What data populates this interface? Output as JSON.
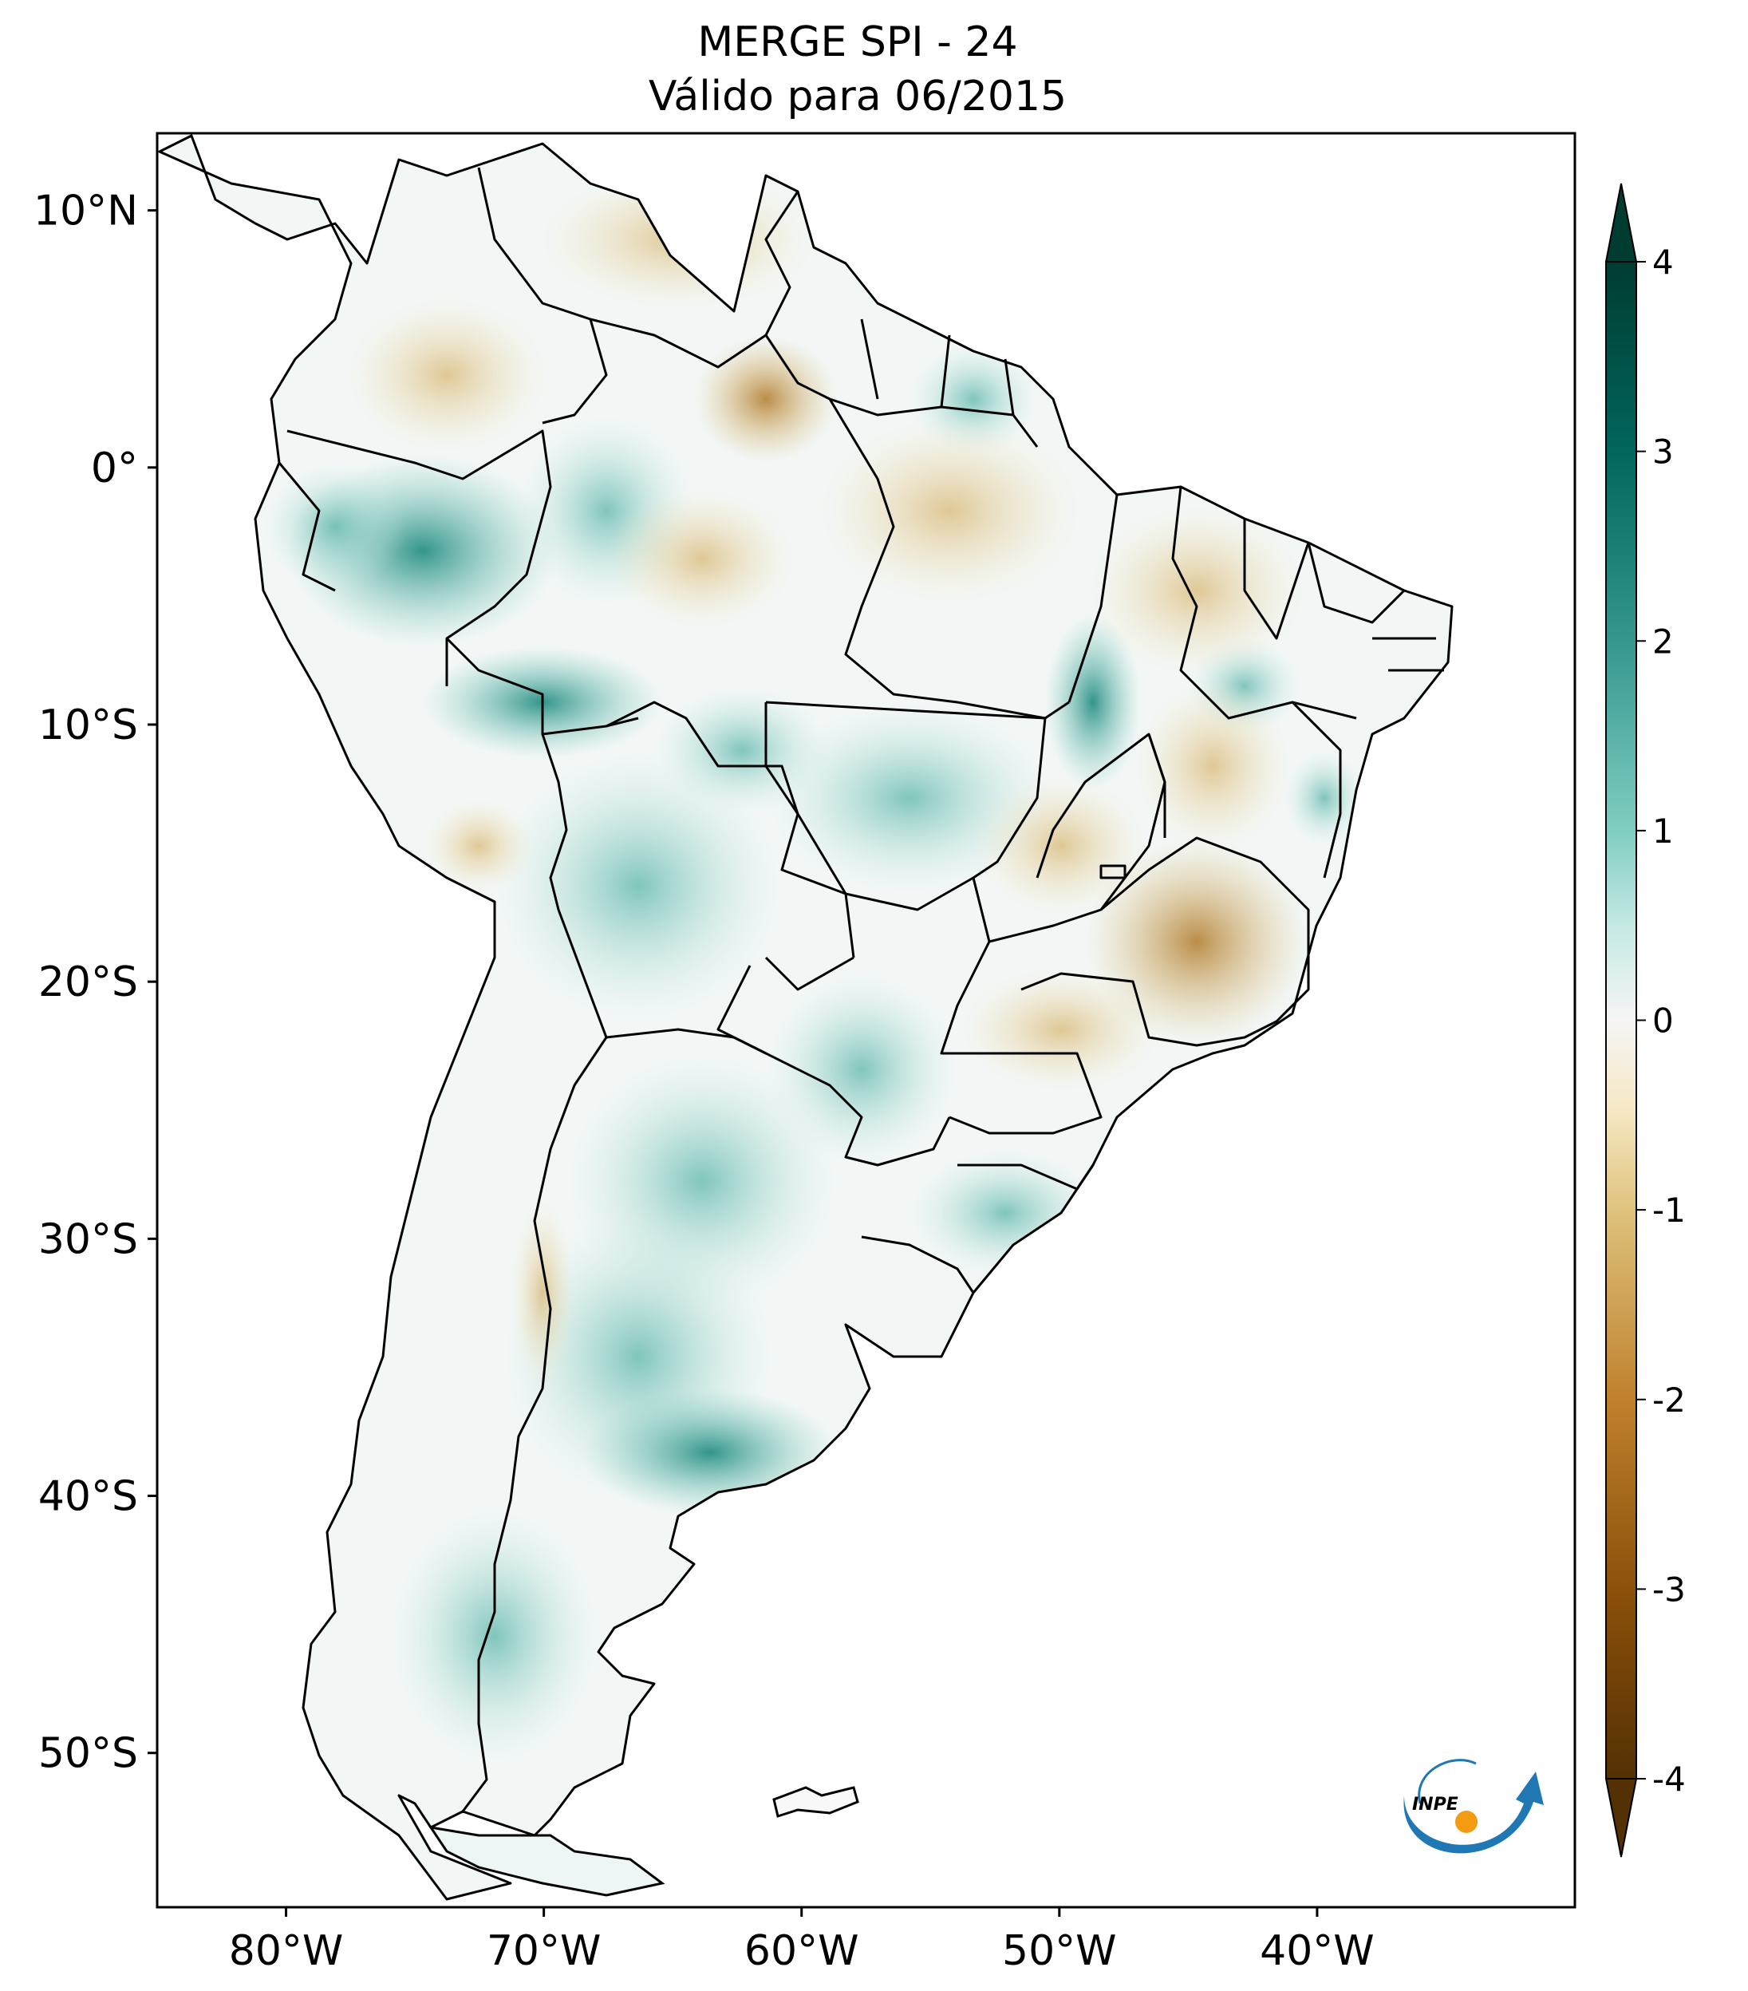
{
  "title": {
    "line1": "MERGE   SPI - 24",
    "line2": "Válido para 06/2015"
  },
  "map": {
    "lon_range": [
      -85,
      -30
    ],
    "lat_range": [
      -56,
      13
    ],
    "lon_ticks": [
      {
        "value": -80,
        "label": "80°W"
      },
      {
        "value": -70,
        "label": "70°W"
      },
      {
        "value": -60,
        "label": "60°W"
      },
      {
        "value": -50,
        "label": "50°W"
      },
      {
        "value": -40,
        "label": "40°W"
      }
    ],
    "lat_ticks": [
      {
        "value": 10,
        "label": "10°N"
      },
      {
        "value": 0,
        "label": "0°"
      },
      {
        "value": -10,
        "label": "10°S"
      },
      {
        "value": -20,
        "label": "20°S"
      },
      {
        "value": -30,
        "label": "30°S"
      },
      {
        "value": -40,
        "label": "40°S"
      },
      {
        "value": -50,
        "label": "50°S"
      }
    ]
  },
  "colorbar": {
    "range": [
      -4,
      4
    ],
    "extend": "both",
    "cmap": "BrBG",
    "ticks": [
      {
        "value": 4,
        "label": "4"
      },
      {
        "value": 3,
        "label": "3"
      },
      {
        "value": 2,
        "label": "2"
      },
      {
        "value": 1,
        "label": "1"
      },
      {
        "value": 0,
        "label": "0"
      },
      {
        "value": -1,
        "label": "-1"
      },
      {
        "value": -2,
        "label": "-2"
      },
      {
        "value": -3,
        "label": "-3"
      },
      {
        "value": -4,
        "label": "-4"
      }
    ],
    "colors": {
      "min": "#543005",
      "v_m3": "#8c510a",
      "v_m2": "#bf812d",
      "v_m1": "#dfc27d",
      "v_m05": "#f6e8c3",
      "zero": "#f5f5f5",
      "v_05": "#c7eae5",
      "v_1": "#80cdc1",
      "v_2": "#35978f",
      "v_3": "#01665e",
      "max": "#003c30"
    }
  },
  "logo": {
    "text": "INPE",
    "colors": {
      "arc": "#1f78b4",
      "dot": "#f39c12"
    }
  }
}
